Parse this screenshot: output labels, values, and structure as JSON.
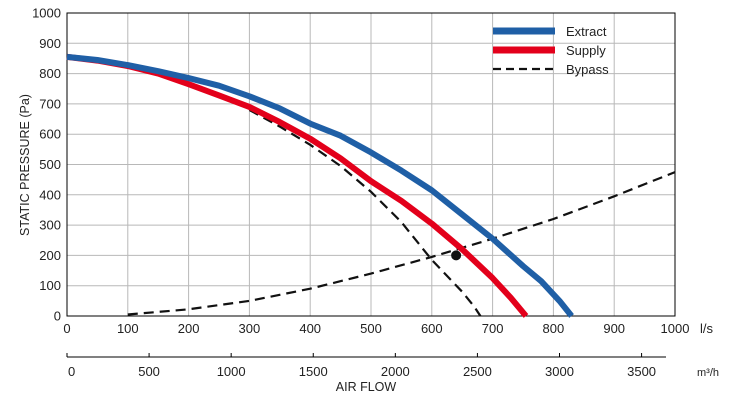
{
  "chart_data": {
    "type": "line",
    "title": "",
    "ylabel": "STATIC PRESSURE (Pa)",
    "xlabel": "AIR FLOW",
    "x_unit": "l/s",
    "x2_unit": "m³/h",
    "xlim": [
      0,
      1000
    ],
    "ylim": [
      0,
      1000
    ],
    "x2lim": [
      0,
      3600
    ],
    "x_ticks": [
      0,
      100,
      200,
      300,
      400,
      500,
      600,
      700,
      800,
      900,
      1000
    ],
    "y_ticks": [
      0,
      100,
      200,
      300,
      400,
      500,
      600,
      700,
      800,
      900,
      1000
    ],
    "x2_ticks": [
      0,
      500,
      1000,
      1500,
      2000,
      2500,
      3000,
      3500
    ],
    "grid": true,
    "legend_position": "top-right",
    "colors": {
      "extract": "#1f5fa6",
      "supply": "#e3001b",
      "bypass": "#111111",
      "point": "#111111"
    },
    "series": [
      {
        "name": "Extract",
        "style": "solid",
        "x": [
          0,
          50,
          100,
          150,
          200,
          250,
          300,
          350,
          400,
          450,
          500,
          550,
          600,
          650,
          700,
          750,
          780,
          810,
          830
        ],
        "y": [
          855,
          845,
          828,
          808,
          785,
          760,
          725,
          685,
          635,
          595,
          540,
          480,
          415,
          335,
          255,
          165,
          115,
          50,
          0
        ]
      },
      {
        "name": "Supply",
        "style": "solid",
        "x": [
          0,
          50,
          100,
          150,
          200,
          250,
          300,
          350,
          400,
          450,
          500,
          550,
          600,
          650,
          700,
          730,
          755
        ],
        "y": [
          855,
          843,
          825,
          800,
          765,
          728,
          690,
          640,
          585,
          520,
          445,
          380,
          305,
          220,
          125,
          60,
          0
        ]
      },
      {
        "name": "Bypass",
        "style": "dashed",
        "segments": [
          {
            "x": [
              100,
              200,
              300,
              400,
              500,
              600,
              700,
              800,
              900,
              1000
            ],
            "y": [
              5,
              22,
              50,
              90,
              140,
              195,
              255,
              320,
              395,
              475
            ]
          },
          {
            "x": [
              300,
              350,
              400,
              450,
              500,
              550,
              600,
              650,
              670,
              680
            ],
            "y": [
              680,
              625,
              565,
              495,
              410,
              310,
              185,
              80,
              30,
              0
            ]
          }
        ]
      }
    ],
    "points": [
      {
        "x": 640,
        "y": 200
      }
    ]
  }
}
